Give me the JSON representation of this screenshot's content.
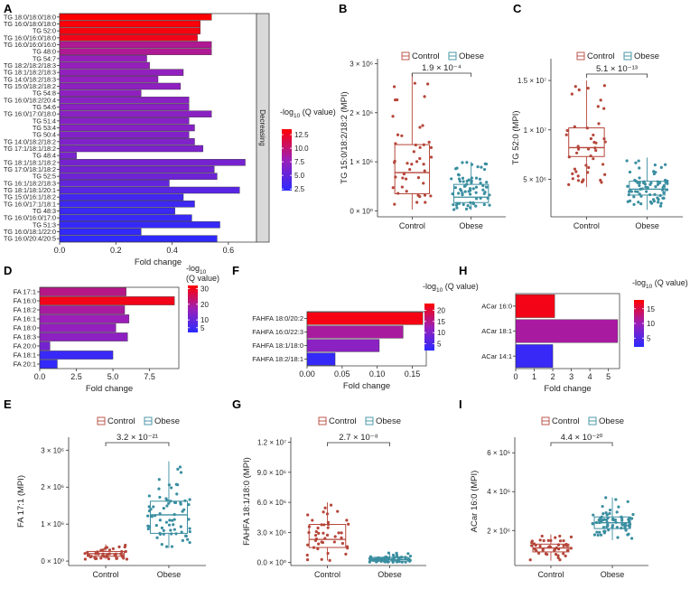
{
  "panels": {
    "A": {
      "letter": "A",
      "type": "bar",
      "orientation": "horizontal",
      "categories": [
        "TG 18:0/18:0/18:0",
        "TG 16:0/18:0/18:0",
        "TG 52:0",
        "TG 16:0/16:0/18:0",
        "TG 16:0/16:0/16:0",
        "TG 48:0",
        "TG 54:7",
        "TG 18:2/18:2/18:3",
        "TG 18:1/18:2/18:3",
        "TG 14:0/18:2/18:3",
        "TG 15:0/18:2/18:2",
        "TG 54:8",
        "TG 16:0/18:2/20:4",
        "TG 54:6",
        "TG 16:0/17:0/18:0",
        "TG 51:4",
        "TG 53:4",
        "TG 50:4",
        "TG 14:0/18:2/18:2",
        "TG 17:1/18:1/18:2",
        "TG 48:4",
        "TG 18:1/18:1/18:2",
        "TG 17:0/18:1/18:2",
        "TG 52:5",
        "TG 16:1/18:2/18:3",
        "TG 18:1/18:1/20:1",
        "TG 15:0/16:1/18:2",
        "TG 16:0/17:1/18:1",
        "TG 48:3",
        "TG 16:0/16:0/17:0",
        "TG 51:3",
        "TG 16:0/18:1/22:0",
        "TG 16:0/20:4/20:5"
      ],
      "values": [
        0.54,
        0.5,
        0.5,
        0.49,
        0.54,
        0.54,
        0.31,
        0.32,
        0.44,
        0.35,
        0.43,
        0.29,
        0.46,
        0.46,
        0.54,
        0.46,
        0.48,
        0.46,
        0.48,
        0.51,
        0.06,
        0.66,
        0.55,
        0.56,
        0.39,
        0.64,
        0.44,
        0.48,
        0.41,
        0.47,
        0.57,
        0.29,
        0.56
      ],
      "qvalues": [
        13.5,
        13.2,
        13.0,
        12.7,
        9.0,
        9.0,
        7.6,
        7.6,
        7.4,
        7.4,
        7.2,
        7.2,
        7.0,
        7.0,
        7.0,
        6.8,
        6.8,
        6.6,
        6.5,
        6.3,
        6.2,
        6.0,
        5.8,
        5.6,
        5.0,
        4.5,
        3.5,
        3.2,
        3.0,
        2.9,
        2.8,
        2.6,
        2.5
      ],
      "xlabel": "Fold change",
      "xticks": [
        "0.0",
        "0.2",
        "0.4",
        "0.6"
      ],
      "xlim": [
        0,
        0.7
      ],
      "strip_label": "Decreasing",
      "legend_title": "-log10 (Q value)",
      "legend_ticks": [
        "12.5",
        "10.0",
        "7.5",
        "5.0",
        "2.5"
      ],
      "legend_range": [
        2.2,
        13.5
      ]
    },
    "B": {
      "letter": "B",
      "type": "box",
      "ylabel": "TG 15:0/18:2/18:2 (MPI)",
      "yticks": [
        "0 × 10⁰",
        "1 × 10⁶",
        "2 × 10⁶",
        "3 × 10⁶"
      ],
      "ytick_values": [
        0,
        1000000,
        2000000,
        3000000
      ],
      "ylim": [
        -120000,
        3100000
      ],
      "groups": [
        "Control",
        "Obese"
      ],
      "legend": [
        "Control",
        "Obese"
      ],
      "pvalue": "1.9 × 10⁻⁴",
      "stats": [
        {
          "min": 30000,
          "q1": 350000,
          "median": 780000,
          "q3": 1350000,
          "max": 2800000
        },
        {
          "min": 20000,
          "q1": 170000,
          "median": 280000,
          "q3": 540000,
          "max": 1000000
        }
      ],
      "points_n": [
        45,
        70
      ]
    },
    "C": {
      "letter": "C",
      "type": "box",
      "ylabel": "TG 52:0 (MPI)",
      "yticks": [
        "5 × 10⁶",
        "1 × 10⁷",
        "1.5 × 10⁷"
      ],
      "ytick_values": [
        5000000,
        10000000,
        15000000
      ],
      "ylim": [
        1200000,
        17200000
      ],
      "groups": [
        "Control",
        "Obese"
      ],
      "legend": [
        "Control",
        "Obese"
      ],
      "pvalue": "5.1 × 10⁻¹³",
      "stats": [
        {
          "min": 4200000,
          "q1": 7300000,
          "median": 8200000,
          "q3": 10200000,
          "max": 15000000
        },
        {
          "min": 1900000,
          "q1": 3400000,
          "median": 4000000,
          "q3": 4800000,
          "max": 7200000
        }
      ],
      "points_n": [
        45,
        70
      ]
    },
    "D": {
      "letter": "D",
      "type": "bar",
      "orientation": "horizontal",
      "categories": [
        "FA 17:1",
        "FA 16:0",
        "FA 18:2",
        "FA 16:1",
        "FA 18:0",
        "FA 18:3",
        "FA 20:0",
        "FA 18:1",
        "FA 20:1"
      ],
      "values": [
        5.9,
        9.2,
        5.8,
        6.1,
        5.2,
        6.0,
        0.7,
        5.0,
        1.2
      ],
      "qvalues": [
        21,
        30,
        19,
        17,
        16,
        15,
        12,
        4,
        3
      ],
      "xlabel": "Fold change",
      "xticks": [
        "0.0",
        "2.5",
        "5.0",
        "7.5"
      ],
      "xlim": [
        0,
        9.5
      ],
      "legend_title": "-log10 (Q value)",
      "legend_ticks": [
        "30",
        "20",
        "10",
        "5"
      ],
      "legend_range": [
        2,
        32
      ]
    },
    "E": {
      "letter": "E",
      "type": "box",
      "ylabel": "FA 17:1 (MPI)",
      "yticks": [
        "0 × 10⁰",
        "1 × 10⁶",
        "2 × 10⁶",
        "3 × 10⁶"
      ],
      "ytick_values": [
        0,
        1000000,
        2000000,
        3000000
      ],
      "ylim": [
        -120000,
        3350000
      ],
      "groups": [
        "Control",
        "Obese"
      ],
      "legend": [
        "Control",
        "Obese"
      ],
      "pvalue": "3.2 × 10⁻²¹",
      "stats": [
        {
          "min": 50000,
          "q1": 130000,
          "median": 200000,
          "q3": 260000,
          "max": 450000
        },
        {
          "min": 350000,
          "q1": 750000,
          "median": 1250000,
          "q3": 1620000,
          "max": 2700000
        }
      ],
      "points_n": [
        45,
        70
      ]
    },
    "F": {
      "letter": "F",
      "type": "bar",
      "orientation": "horizontal",
      "categories": [
        "FAHFA 18:0/20:2",
        "FAHFA 16:0/22:3",
        "FAHFA 18:1/18:0",
        "FAHFA 18:2/18:1"
      ],
      "values": [
        0.165,
        0.137,
        0.103,
        0.04
      ],
      "qvalues": [
        22,
        14,
        11,
        3
      ],
      "xlabel": "Fold change",
      "xticks": [
        "0.00",
        "0.05",
        "0.10",
        "0.15"
      ],
      "xlim": [
        0,
        0.17
      ],
      "legend_title": "-log10 (Q value)",
      "legend_ticks": [
        "20",
        "15",
        "10",
        "5"
      ],
      "legend_range": [
        2,
        23
      ]
    },
    "G": {
      "letter": "G",
      "type": "box",
      "ylabel": "FAHFA 18:1/18:0 (MPI)",
      "yticks": [
        "0.0 × 10⁰",
        "3.0 × 10⁶",
        "6.0 × 10⁶",
        "9.0 × 10⁶",
        "1.2 × 10⁷"
      ],
      "ytick_values": [
        0,
        3000000,
        6000000,
        9000000,
        12000000
      ],
      "ylim": [
        -300000,
        12500000
      ],
      "groups": [
        "Control",
        "Obese"
      ],
      "legend": [
        "Control",
        "Obese"
      ],
      "pvalue": "2.7 × 10⁻⁸",
      "stats": [
        {
          "min": 200000,
          "q1": 1500000,
          "median": 2300000,
          "q3": 3800000,
          "max": 6000000
        },
        {
          "min": 30000,
          "q1": 150000,
          "median": 300000,
          "q3": 520000,
          "max": 1000000
        }
      ],
      "points_n": [
        45,
        70
      ]
    },
    "H": {
      "letter": "H",
      "type": "bar",
      "orientation": "horizontal",
      "categories": [
        "ACar 16:0",
        "ACar 18:1",
        "ACar 14:1"
      ],
      "values": [
        2.1,
        5.5,
        2.0
      ],
      "qvalues": [
        17,
        11,
        3
      ],
      "xlabel": "Fold change",
      "xticks": [
        "0",
        "1",
        "2",
        "3",
        "4",
        "5"
      ],
      "xlim": [
        0,
        5.6
      ],
      "legend_title": "-log10 (Q value)",
      "legend_ticks": [
        "15",
        "10",
        "5"
      ],
      "legend_range": [
        2,
        18
      ]
    },
    "I": {
      "letter": "I",
      "type": "box",
      "ylabel": "ACar 16:0 (MPI)",
      "yticks": [
        "2 × 10⁶",
        "4 × 10⁶",
        "6 × 10⁶"
      ],
      "ytick_values": [
        2000000,
        4000000,
        6000000
      ],
      "ylim": [
        200000,
        6800000
      ],
      "groups": [
        "Control",
        "Obese"
      ],
      "legend": [
        "Control",
        "Obese"
      ],
      "pvalue": "4.4 × 10⁻²⁰",
      "stats": [
        {
          "min": 450000,
          "q1": 900000,
          "median": 1100000,
          "q3": 1300000,
          "max": 1800000
        },
        {
          "min": 1500000,
          "q1": 2100000,
          "median": 2400000,
          "q3": 2700000,
          "max": 3700000
        }
      ],
      "points_n": [
        45,
        70
      ]
    }
  },
  "colors": {
    "control": "#b5463a",
    "obese": "#3a8ea0",
    "grad_high": "#ff0000",
    "grad_mid": "#9b1fb8",
    "grad_low": "#2a2aff",
    "strip_fill": "#d9d9d9"
  }
}
